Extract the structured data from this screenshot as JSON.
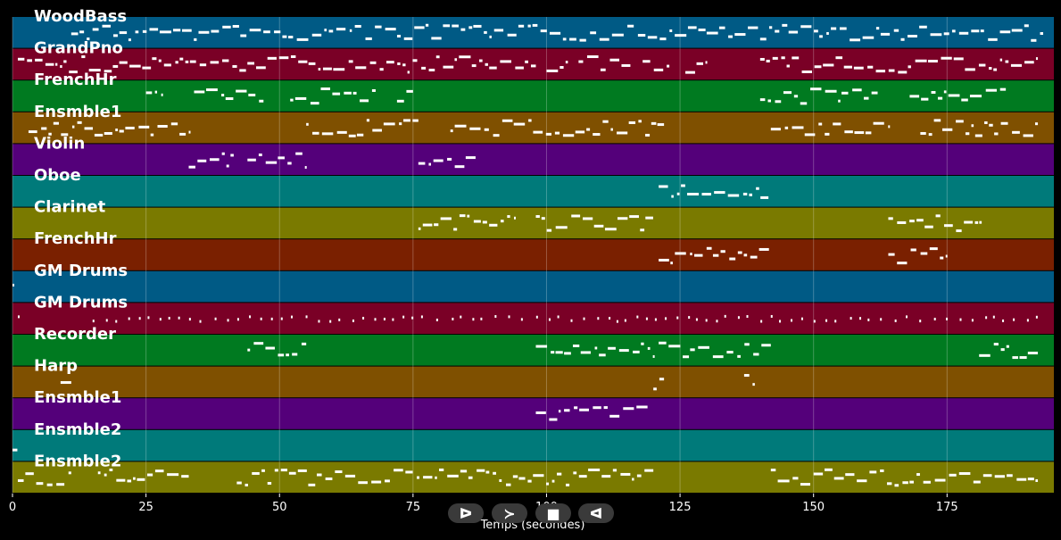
{
  "chart_data": {
    "type": "piano-roll",
    "title": "",
    "xlabel": "Temps (secondes)",
    "ylabel": "",
    "xlim": [
      0,
      195
    ],
    "xticks": [
      0,
      25,
      50,
      75,
      100,
      125,
      150,
      175
    ],
    "grid": true,
    "tracks": [
      {
        "name": "WoodBass",
        "color": "#005a85",
        "phrases": [
          [
            11,
            193
          ]
        ]
      },
      {
        "name": "GrandPno",
        "color": "#7a0026",
        "phrases": [
          [
            1,
            98
          ],
          [
            100,
            104
          ],
          [
            106,
            116
          ],
          [
            118,
            123
          ],
          [
            126,
            130
          ],
          [
            140,
            192
          ]
        ]
      },
      {
        "name": "FrenchHr",
        "color": "#007a20",
        "phrases": [
          [
            25,
            28
          ],
          [
            34,
            47
          ],
          [
            52,
            68
          ],
          [
            72,
            75
          ],
          [
            140,
            162
          ],
          [
            168,
            186
          ]
        ]
      },
      {
        "name": "Ensmble1",
        "color": "#7f5000",
        "phrases": [
          [
            3,
            33
          ],
          [
            55,
            76
          ],
          [
            82,
            122
          ],
          [
            142,
            164
          ],
          [
            170,
            192
          ]
        ]
      },
      {
        "name": "Violin",
        "color": "#54007a",
        "phrases": [
          [
            33,
            42
          ],
          [
            44,
            55
          ],
          [
            76,
            87
          ]
        ]
      },
      {
        "name": "Oboe",
        "color": "#007a7a",
        "phrases": [
          [
            121,
            142
          ]
        ]
      },
      {
        "name": "Clarinet",
        "color": "#7a7a00",
        "phrases": [
          [
            76,
            94
          ],
          [
            98,
            120
          ],
          [
            164,
            182
          ]
        ]
      },
      {
        "name": "FrenchHr",
        "color": "#7a2000",
        "phrases": [
          [
            121,
            142
          ],
          [
            164,
            175
          ]
        ]
      },
      {
        "name": "GM Drums",
        "color": "#005a85",
        "phrases": [
          [
            0,
            1
          ]
        ]
      },
      {
        "name": "GM Drums",
        "color": "#7a0026",
        "phrases": [
          [
            1,
            2
          ],
          [
            15,
            192
          ]
        ]
      },
      {
        "name": "Recorder",
        "color": "#007a20",
        "phrases": [
          [
            44,
            55
          ],
          [
            98,
            120
          ],
          [
            121,
            142
          ],
          [
            181,
            192
          ]
        ]
      },
      {
        "name": "Harp",
        "color": "#7f5000",
        "phrases": [
          [
            9,
            11
          ],
          [
            120,
            122
          ],
          [
            137,
            139
          ]
        ]
      },
      {
        "name": "Ensmble1",
        "color": "#54007a",
        "phrases": [
          [
            98,
            119
          ]
        ]
      },
      {
        "name": "Ensmble2",
        "color": "#007a7a",
        "phrases": [
          [
            0,
            1
          ]
        ]
      },
      {
        "name": "Ensmble2",
        "color": "#7a7a00",
        "phrases": [
          [
            1,
            11
          ],
          [
            16,
            33
          ],
          [
            42,
            120
          ],
          [
            142,
            192
          ]
        ]
      }
    ]
  },
  "controls": {
    "icons": [
      "play-forward-icon",
      "next-icon",
      "stop-icon",
      "play-backward-icon"
    ],
    "glyphs": [
      "ᐅ",
      "≻",
      "■",
      "ᐊ"
    ]
  }
}
